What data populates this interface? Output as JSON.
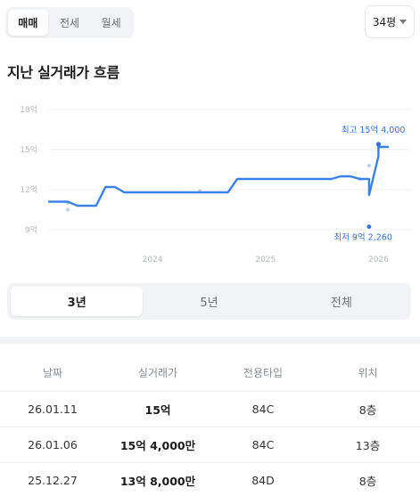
{
  "top_tabs": [
    {
      "label": "매매",
      "active": true
    },
    {
      "label": "전세",
      "active": false
    },
    {
      "label": "월세",
      "active": false
    }
  ],
  "size_select": {
    "value": "34평"
  },
  "section_title": "지난 실거래가 흐름",
  "chart_data": {
    "type": "line",
    "x_type": "date",
    "xlim": [
      "2023-02",
      "2026-02"
    ],
    "ylim": [
      8,
      18
    ],
    "y_ticks": [
      {
        "value": 9,
        "label": "9억"
      },
      {
        "value": 12,
        "label": "12억"
      },
      {
        "value": 15,
        "label": "15억"
      },
      {
        "value": 18,
        "label": "18억"
      }
    ],
    "x_ticks": [
      {
        "value": "2024-01",
        "label": "2024"
      },
      {
        "value": "2025-01",
        "label": "2025"
      },
      {
        "value": "2026-01",
        "label": "2026"
      }
    ],
    "grid": true,
    "series": [
      {
        "line_color": "#3b82e8",
        "points": [
          [
            "2023-02",
            11.1
          ],
          [
            "2023-04",
            11.1
          ],
          [
            "2023-05",
            10.8
          ],
          [
            "2023-07",
            10.8
          ],
          [
            "2023-08",
            12.2
          ],
          [
            "2023-09",
            12.2
          ],
          [
            "2023-10",
            11.8
          ],
          [
            "2024-01",
            11.8
          ],
          [
            "2024-07",
            11.8
          ],
          [
            "2024-09",
            11.8
          ],
          [
            "2024-10",
            12.8
          ],
          [
            "2025-01",
            12.8
          ],
          [
            "2025-08",
            12.8
          ],
          [
            "2025-09",
            13.0
          ],
          [
            "2025-10",
            13.0
          ],
          [
            "2025-11",
            12.8
          ],
          [
            "2025-12",
            12.8
          ],
          [
            "2025-12",
            11.6
          ],
          [
            "2026-01",
            14.5
          ],
          [
            "2026-01",
            15.2
          ],
          [
            "2026-02",
            15.2
          ]
        ]
      }
    ],
    "scatter_color": "#b7d3f5",
    "scatter": [
      [
        "2023-04",
        11.0
      ],
      [
        "2023-04",
        10.5
      ],
      [
        "2024-06",
        11.9
      ],
      [
        "2025-11",
        12.8
      ],
      [
        "2025-12",
        13.8
      ],
      [
        "2026-01",
        15.4
      ]
    ],
    "annotations": {
      "max": {
        "label": "최고 15억 4,000",
        "x": "2026-01",
        "y": 15.4,
        "color": "#2f6fd6"
      },
      "min": {
        "label": "최저 9억 2,260",
        "x": "2025-12",
        "y": 9.226,
        "color": "#2f6fd6"
      }
    }
  },
  "period_tabs": [
    {
      "label": "3년",
      "active": true
    },
    {
      "label": "5년",
      "active": false
    },
    {
      "label": "전체",
      "active": false
    }
  ],
  "table": {
    "headers": [
      "날짜",
      "실거래가",
      "전용타입",
      "위치"
    ],
    "rows": [
      {
        "date": "26.01.11",
        "price": "15억",
        "type": "84C",
        "floor": "8층"
      },
      {
        "date": "26.01.06",
        "price": "15억 4,000만",
        "type": "84C",
        "floor": "13층"
      },
      {
        "date": "25.12.27",
        "price": "13억 8,000만",
        "type": "84D",
        "floor": "8층"
      }
    ]
  }
}
